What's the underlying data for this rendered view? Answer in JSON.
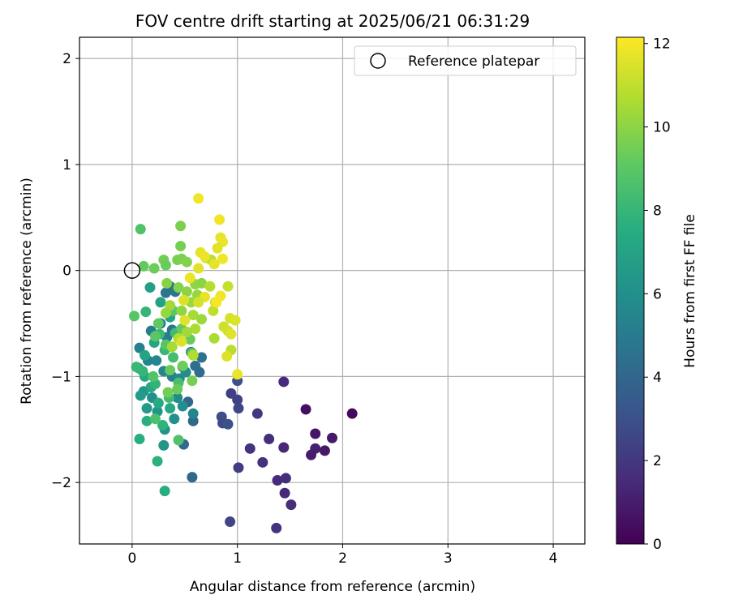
{
  "chart_data": {
    "type": "scatter",
    "title": "FOV centre drift starting at 2025/06/21 06:31:29",
    "xlabel": "Angular distance from reference (arcmin)",
    "ylabel": "Rotation from reference (arcmin)",
    "xlim": [
      -0.5,
      4.3
    ],
    "ylim": [
      -2.58,
      2.2
    ],
    "xticks": [
      0,
      1,
      2,
      3,
      4
    ],
    "xtick_labels": [
      "0",
      "1",
      "2",
      "3",
      "4"
    ],
    "yticks": [
      -2,
      -1,
      0,
      1,
      2
    ],
    "ytick_labels": [
      "−2",
      "−1",
      "0",
      "1",
      "2"
    ],
    "grid": true,
    "legend": {
      "position": "top-right",
      "entries": [
        {
          "label": "Reference platepar",
          "marker": "open-circle"
        }
      ]
    },
    "reference_point": {
      "x": 0,
      "y": 0
    },
    "colorbar": {
      "label": "Hours from first FF file",
      "colormap": "viridis",
      "range": [
        0,
        12.15
      ],
      "ticks": [
        0,
        2,
        4,
        6,
        8,
        10,
        12
      ],
      "tick_labels": [
        "0",
        "2",
        "4",
        "6",
        "8",
        "10",
        "12"
      ]
    },
    "points": [
      {
        "x": 2.09,
        "y": -1.35,
        "c": 0.3
      },
      {
        "x": 1.65,
        "y": -1.31,
        "c": 0.5
      },
      {
        "x": 1.74,
        "y": -1.54,
        "c": 0.7
      },
      {
        "x": 1.9,
        "y": -1.58,
        "c": 0.9
      },
      {
        "x": 1.83,
        "y": -1.7,
        "c": 0.8
      },
      {
        "x": 1.74,
        "y": -1.68,
        "c": 1.1
      },
      {
        "x": 1.7,
        "y": -1.74,
        "c": 1.0
      },
      {
        "x": 1.44,
        "y": -1.05,
        "c": 1.5
      },
      {
        "x": 1.44,
        "y": -1.67,
        "c": 1.4
      },
      {
        "x": 1.3,
        "y": -1.59,
        "c": 1.6
      },
      {
        "x": 1.12,
        "y": -1.68,
        "c": 1.8
      },
      {
        "x": 1.24,
        "y": -1.81,
        "c": 1.7
      },
      {
        "x": 1.38,
        "y": -1.98,
        "c": 1.5
      },
      {
        "x": 1.46,
        "y": -1.96,
        "c": 1.6
      },
      {
        "x": 1.45,
        "y": -2.1,
        "c": 1.4
      },
      {
        "x": 1.51,
        "y": -2.21,
        "c": 1.6
      },
      {
        "x": 1.37,
        "y": -2.43,
        "c": 1.8
      },
      {
        "x": 1.19,
        "y": -1.35,
        "c": 2.0
      },
      {
        "x": 1.01,
        "y": -1.86,
        "c": 2.2
      },
      {
        "x": 0.93,
        "y": -2.37,
        "c": 2.5
      },
      {
        "x": 0.94,
        "y": -1.16,
        "c": 2.3
      },
      {
        "x": 1.0,
        "y": -1.22,
        "c": 2.4
      },
      {
        "x": 1.01,
        "y": -1.3,
        "c": 2.6
      },
      {
        "x": 0.85,
        "y": -1.38,
        "c": 2.9
      },
      {
        "x": 0.86,
        "y": -1.44,
        "c": 2.7
      },
      {
        "x": 0.91,
        "y": -1.45,
        "c": 3.0
      },
      {
        "x": 1.0,
        "y": -1.04,
        "c": 3.0
      },
      {
        "x": 0.57,
        "y": -1.95,
        "c": 4.0
      },
      {
        "x": 0.58,
        "y": -1.42,
        "c": 4.1
      },
      {
        "x": 0.53,
        "y": -1.24,
        "c": 4.0
      },
      {
        "x": 0.49,
        "y": -1.64,
        "c": 4.2
      },
      {
        "x": 0.64,
        "y": -0.96,
        "c": 4.3
      },
      {
        "x": 0.66,
        "y": -0.82,
        "c": 4.5
      },
      {
        "x": 0.6,
        "y": -0.9,
        "c": 4.4
      },
      {
        "x": 0.56,
        "y": -0.77,
        "c": 4.6
      },
      {
        "x": 0.48,
        "y": -0.91,
        "c": 4.5
      },
      {
        "x": 0.32,
        "y": -0.21,
        "c": 4.7
      },
      {
        "x": 0.36,
        "y": -0.15,
        "c": 4.6
      },
      {
        "x": 0.41,
        "y": -0.2,
        "c": 4.8
      },
      {
        "x": 0.38,
        "y": -0.56,
        "c": 4.7
      },
      {
        "x": 0.27,
        "y": -0.5,
        "c": 5.0
      },
      {
        "x": 0.33,
        "y": -0.63,
        "c": 5.0
      },
      {
        "x": 0.18,
        "y": -0.57,
        "c": 5.1
      },
      {
        "x": 0.07,
        "y": -0.73,
        "c": 5.3
      },
      {
        "x": 0.15,
        "y": -0.85,
        "c": 5.4
      },
      {
        "x": 0.23,
        "y": -0.85,
        "c": 5.6
      },
      {
        "x": 0.3,
        "y": -0.95,
        "c": 5.5
      },
      {
        "x": 0.38,
        "y": -1.0,
        "c": 5.2
      },
      {
        "x": 0.45,
        "y": -1.02,
        "c": 5.7
      },
      {
        "x": 0.51,
        "y": -0.96,
        "c": 5.9
      },
      {
        "x": 0.43,
        "y": -1.2,
        "c": 5.8
      },
      {
        "x": 0.48,
        "y": -1.28,
        "c": 6.0
      },
      {
        "x": 0.58,
        "y": -1.35,
        "c": 5.5
      },
      {
        "x": 0.4,
        "y": -1.4,
        "c": 6.1
      },
      {
        "x": 0.31,
        "y": -1.5,
        "c": 6.2
      },
      {
        "x": 0.24,
        "y": -1.33,
        "c": 6.3
      },
      {
        "x": 0.19,
        "y": -1.2,
        "c": 6.0
      },
      {
        "x": 0.11,
        "y": -1.14,
        "c": 6.4
      },
      {
        "x": 0.08,
        "y": -1.18,
        "c": 6.6
      },
      {
        "x": 0.14,
        "y": -1.3,
        "c": 6.5
      },
      {
        "x": 0.3,
        "y": -1.65,
        "c": 6.4
      },
      {
        "x": 0.17,
        "y": -0.16,
        "c": 6.8
      },
      {
        "x": 0.27,
        "y": -0.3,
        "c": 6.9
      },
      {
        "x": 0.36,
        "y": -0.44,
        "c": 7.0
      },
      {
        "x": 0.21,
        "y": -0.68,
        "c": 7.1
      },
      {
        "x": 0.12,
        "y": -0.8,
        "c": 7.0
      },
      {
        "x": 0.06,
        "y": -0.92,
        "c": 7.2
      },
      {
        "x": 0.12,
        "y": -1.0,
        "c": 7.3
      },
      {
        "x": 0.18,
        "y": -1.1,
        "c": 7.2
      },
      {
        "x": 0.25,
        "y": -1.25,
        "c": 7.4
      },
      {
        "x": 0.36,
        "y": -1.3,
        "c": 7.3
      },
      {
        "x": 0.31,
        "y": -2.08,
        "c": 7.5
      },
      {
        "x": 0.07,
        "y": -1.59,
        "c": 7.6
      },
      {
        "x": 0.24,
        "y": -1.8,
        "c": 7.7
      },
      {
        "x": 0.14,
        "y": -1.42,
        "c": 7.6
      },
      {
        "x": 0.29,
        "y": -1.46,
        "c": 7.8
      },
      {
        "x": 0.22,
        "y": -1.07,
        "c": 7.9
      },
      {
        "x": 0.1,
        "y": -0.95,
        "c": 8.0
      },
      {
        "x": 0.04,
        "y": -0.91,
        "c": 8.1
      },
      {
        "x": 0.13,
        "y": -0.39,
        "c": 8.0
      },
      {
        "x": 0.26,
        "y": -0.6,
        "c": 8.2
      },
      {
        "x": 0.31,
        "y": -0.75,
        "c": 8.1
      },
      {
        "x": 0.41,
        "y": -0.59,
        "c": 8.3
      },
      {
        "x": 0.39,
        "y": -0.82,
        "c": 8.4
      },
      {
        "x": 0.44,
        "y": -1.06,
        "c": 8.5
      },
      {
        "x": 0.35,
        "y": -1.2,
        "c": 8.3
      },
      {
        "x": 0.22,
        "y": -1.4,
        "c": 8.6
      },
      {
        "x": 0.44,
        "y": -1.6,
        "c": 8.7
      },
      {
        "x": 0.2,
        "y": -1.0,
        "c": 8.8
      },
      {
        "x": 0.32,
        "y": -0.7,
        "c": 8.9
      },
      {
        "x": 0.22,
        "y": -0.62,
        "c": 9.0
      },
      {
        "x": 0.25,
        "y": -0.5,
        "c": 9.1
      },
      {
        "x": 0.39,
        "y": -0.38,
        "c": 9.0
      },
      {
        "x": 0.47,
        "y": -0.55,
        "c": 9.2
      },
      {
        "x": 0.55,
        "y": -0.65,
        "c": 9.3
      },
      {
        "x": 0.57,
        "y": -0.78,
        "c": 9.1
      },
      {
        "x": 0.48,
        "y": -0.9,
        "c": 9.4
      },
      {
        "x": 0.36,
        "y": -0.94,
        "c": 9.2
      },
      {
        "x": 0.34,
        "y": -1.15,
        "c": 9.5
      },
      {
        "x": 0.43,
        "y": -1.12,
        "c": 9.3
      },
      {
        "x": 0.57,
        "y": -1.04,
        "c": 9.6
      },
      {
        "x": 0.08,
        "y": 0.39,
        "c": 8.7
      },
      {
        "x": 0.02,
        "y": -0.43,
        "c": 8.9
      },
      {
        "x": 0.11,
        "y": 0.04,
        "c": 9.2
      },
      {
        "x": 0.21,
        "y": 0.02,
        "c": 9.4
      },
      {
        "x": 0.3,
        "y": 0.1,
        "c": 9.5
      },
      {
        "x": 0.32,
        "y": 0.05,
        "c": 9.3
      },
      {
        "x": 0.43,
        "y": 0.1,
        "c": 9.6
      },
      {
        "x": 0.47,
        "y": 0.11,
        "c": 9.7
      },
      {
        "x": 0.52,
        "y": 0.08,
        "c": 9.8
      },
      {
        "x": 0.46,
        "y": 0.23,
        "c": 9.6
      },
      {
        "x": 0.46,
        "y": 0.42,
        "c": 9.7
      },
      {
        "x": 0.33,
        "y": -0.12,
        "c": 9.9
      },
      {
        "x": 0.44,
        "y": -0.16,
        "c": 9.8
      },
      {
        "x": 0.52,
        "y": -0.2,
        "c": 10.0
      },
      {
        "x": 0.6,
        "y": -0.13,
        "c": 10.1
      },
      {
        "x": 0.66,
        "y": -0.12,
        "c": 10.0
      },
      {
        "x": 0.62,
        "y": -0.23,
        "c": 10.2
      },
      {
        "x": 0.56,
        "y": -0.3,
        "c": 10.3
      },
      {
        "x": 0.47,
        "y": -0.38,
        "c": 10.1
      },
      {
        "x": 0.36,
        "y": -0.33,
        "c": 10.4
      },
      {
        "x": 0.32,
        "y": -0.4,
        "c": 10.2
      },
      {
        "x": 0.58,
        "y": -0.42,
        "c": 10.5
      },
      {
        "x": 0.66,
        "y": -0.46,
        "c": 10.3
      },
      {
        "x": 0.6,
        "y": -0.55,
        "c": 10.6
      },
      {
        "x": 0.52,
        "y": -0.58,
        "c": 10.4
      },
      {
        "x": 0.44,
        "y": -0.64,
        "c": 10.7
      },
      {
        "x": 0.38,
        "y": -0.72,
        "c": 10.5
      },
      {
        "x": 0.78,
        "y": -0.64,
        "c": 10.6
      },
      {
        "x": 0.58,
        "y": -0.8,
        "c": 10.7
      },
      {
        "x": 0.7,
        "y": 0.12,
        "c": 10.8
      },
      {
        "x": 0.75,
        "y": 0.1,
        "c": 10.9
      },
      {
        "x": 0.74,
        "y": -0.15,
        "c": 10.8
      },
      {
        "x": 0.79,
        "y": -0.3,
        "c": 10.9
      },
      {
        "x": 0.77,
        "y": -0.38,
        "c": 11.0
      },
      {
        "x": 0.94,
        "y": -0.75,
        "c": 10.9
      },
      {
        "x": 0.91,
        "y": -0.15,
        "c": 11.1
      },
      {
        "x": 0.87,
        "y": -0.53,
        "c": 11.2
      },
      {
        "x": 0.91,
        "y": -0.57,
        "c": 11.3
      },
      {
        "x": 0.93,
        "y": -0.45,
        "c": 11.4
      },
      {
        "x": 0.98,
        "y": -0.47,
        "c": 11.5
      },
      {
        "x": 0.94,
        "y": -0.6,
        "c": 11.6
      },
      {
        "x": 0.9,
        "y": -0.81,
        "c": 11.5
      },
      {
        "x": 1.0,
        "y": -0.98,
        "c": 11.8
      },
      {
        "x": 0.63,
        "y": 0.68,
        "c": 11.9
      },
      {
        "x": 0.83,
        "y": 0.48,
        "c": 11.9
      },
      {
        "x": 0.84,
        "y": 0.31,
        "c": 11.7
      },
      {
        "x": 0.86,
        "y": 0.27,
        "c": 11.8
      },
      {
        "x": 0.81,
        "y": 0.21,
        "c": 11.6
      },
      {
        "x": 0.65,
        "y": 0.17,
        "c": 11.7
      },
      {
        "x": 0.69,
        "y": 0.13,
        "c": 11.8
      },
      {
        "x": 0.86,
        "y": 0.11,
        "c": 11.9
      },
      {
        "x": 0.63,
        "y": 0.02,
        "c": 11.6
      },
      {
        "x": 0.78,
        "y": 0.06,
        "c": 11.7
      },
      {
        "x": 0.55,
        "y": -0.07,
        "c": 11.8
      },
      {
        "x": 0.69,
        "y": -0.25,
        "c": 11.7
      },
      {
        "x": 0.84,
        "y": -0.24,
        "c": 11.9
      },
      {
        "x": 0.8,
        "y": -0.3,
        "c": 12.0
      },
      {
        "x": 0.49,
        "y": -0.28,
        "c": 11.5
      },
      {
        "x": 0.5,
        "y": -0.47,
        "c": 11.6
      },
      {
        "x": 0.47,
        "y": -0.67,
        "c": 11.5
      },
      {
        "x": 0.63,
        "y": -0.3,
        "c": 11.4
      }
    ]
  }
}
